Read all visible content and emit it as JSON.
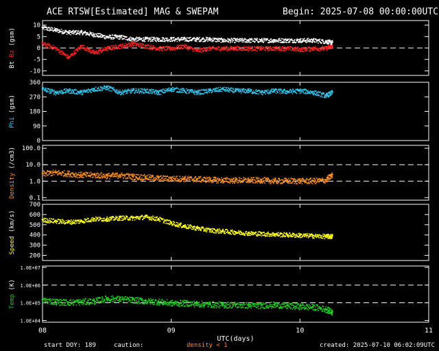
{
  "header": {
    "title": "ACE RTSW[Estimated] MAG & SWEPAM",
    "begin": "Begin: 2025-07-08 00:00:00UTC"
  },
  "footer": {
    "start_doy": "start DOY: 189",
    "caution_label": "caution:",
    "caution_text": "density < 1",
    "created": "created: 2025-07-10 06:02:09UTC"
  },
  "colors": {
    "bt": "#ffffff",
    "bz": "#ff2020",
    "phi": "#30c8f0",
    "density": "#ff9020",
    "speed": "#ffff20",
    "temp": "#20d020",
    "axis": "#ffffff"
  },
  "chart_data": [
    {
      "type": "scatter",
      "panel": "mag",
      "ylabel_parts": [
        "Bt",
        "Bz",
        "(gsm)"
      ],
      "ylim": [
        -12,
        12
      ],
      "yticks": [
        -10,
        -5,
        0,
        5,
        10
      ],
      "dashed_lines": [
        0
      ],
      "x": [
        8.0,
        8.1,
        8.2,
        8.3,
        8.4,
        8.5,
        8.6,
        8.7,
        8.8,
        8.9,
        9.0,
        9.1,
        9.2,
        9.3,
        9.4,
        9.5,
        9.6,
        9.7,
        9.8,
        9.9,
        10.0,
        10.1,
        10.2,
        10.25
      ],
      "series": [
        {
          "name": "Bt",
          "values": [
            9,
            8,
            7,
            7,
            6,
            5,
            5,
            4,
            4,
            4,
            4,
            4,
            4,
            4,
            3.5,
            3.5,
            3.5,
            3.5,
            3.5,
            3.5,
            3.5,
            3.5,
            3,
            2.5
          ]
        },
        {
          "name": "Bz",
          "values": [
            2,
            0,
            -4,
            1,
            -2,
            0,
            1,
            2,
            1,
            0,
            0,
            1,
            -1,
            0,
            0,
            0,
            0,
            0,
            0,
            0,
            -0.5,
            0,
            0,
            1
          ]
        }
      ]
    },
    {
      "type": "scatter",
      "panel": "phi",
      "ylabel_parts": [
        "Phi",
        "(gsm)"
      ],
      "ylim": [
        0,
        360
      ],
      "yticks": [
        0,
        90,
        180,
        270,
        360
      ],
      "dashed_lines": [],
      "x": [
        8.0,
        8.1,
        8.2,
        8.3,
        8.4,
        8.5,
        8.6,
        8.7,
        8.8,
        8.9,
        9.0,
        9.1,
        9.2,
        9.3,
        9.4,
        9.5,
        9.6,
        9.7,
        9.8,
        9.9,
        10.0,
        10.1,
        10.2,
        10.25
      ],
      "series": [
        {
          "name": "Phi",
          "values": [
            320,
            300,
            310,
            300,
            320,
            330,
            300,
            310,
            310,
            300,
            320,
            310,
            300,
            310,
            320,
            310,
            310,
            300,
            310,
            305,
            310,
            300,
            280,
            300
          ]
        }
      ]
    },
    {
      "type": "scatter",
      "panel": "density",
      "scale": "log",
      "ylabel_parts": [
        "Density",
        "(/cm3)"
      ],
      "ylim": [
        0.07,
        150
      ],
      "yticks": [
        0.1,
        1.0,
        10.0,
        100.0
      ],
      "ytick_labels": [
        "0.1",
        "1.0",
        "10.0",
        "100.0"
      ],
      "dashed_lines": [
        1,
        10
      ],
      "x": [
        8.0,
        8.1,
        8.2,
        8.3,
        8.4,
        8.5,
        8.6,
        8.7,
        8.8,
        8.9,
        9.0,
        9.1,
        9.2,
        9.3,
        9.4,
        9.5,
        9.6,
        9.7,
        9.8,
        9.9,
        10.0,
        10.1,
        10.2,
        10.25
      ],
      "series": [
        {
          "name": "Density",
          "values": [
            3,
            3.5,
            3,
            2.5,
            2.5,
            2.2,
            2.4,
            2,
            1.8,
            1.6,
            1.5,
            1.5,
            1.4,
            1.3,
            1.2,
            1.2,
            1.2,
            1.2,
            1.1,
            1.1,
            1.1,
            1.1,
            1.2,
            2.5
          ]
        }
      ]
    },
    {
      "type": "scatter",
      "panel": "speed",
      "ylabel_parts": [
        "Speed",
        "(km/s)"
      ],
      "ylim": [
        150,
        700
      ],
      "yticks": [
        200,
        300,
        400,
        500,
        600,
        700
      ],
      "dashed_lines": [],
      "x": [
        8.0,
        8.1,
        8.2,
        8.3,
        8.4,
        8.5,
        8.6,
        8.7,
        8.8,
        8.9,
        9.0,
        9.1,
        9.2,
        9.3,
        9.4,
        9.5,
        9.6,
        9.7,
        9.8,
        9.9,
        10.0,
        10.1,
        10.2,
        10.25
      ],
      "series": [
        {
          "name": "Speed",
          "values": [
            550,
            540,
            530,
            540,
            560,
            560,
            570,
            570,
            580,
            560,
            520,
            490,
            470,
            450,
            440,
            430,
            420,
            415,
            410,
            405,
            400,
            395,
            390,
            390
          ]
        }
      ]
    },
    {
      "type": "scatter",
      "panel": "temp",
      "scale": "log",
      "ylabel_parts": [
        "Temp",
        "(K)"
      ],
      "ylim": [
        8000,
        12000000
      ],
      "yticks": [
        10000,
        100000,
        1000000,
        10000000
      ],
      "ytick_labels": [
        "1.0E+04",
        "1.0E+05",
        "1.0E+06",
        "1.0E+07"
      ],
      "dashed_lines": [
        100000,
        1000000
      ],
      "x": [
        8.0,
        8.1,
        8.2,
        8.3,
        8.4,
        8.5,
        8.6,
        8.7,
        8.8,
        8.9,
        9.0,
        9.1,
        9.2,
        9.3,
        9.4,
        9.5,
        9.6,
        9.7,
        9.8,
        9.9,
        10.0,
        10.1,
        10.2,
        10.25
      ],
      "series": [
        {
          "name": "Temp",
          "values": [
            150000,
            120000,
            110000,
            120000,
            130000,
            180000,
            170000,
            150000,
            130000,
            120000,
            100000,
            100000,
            90000,
            85000,
            80000,
            80000,
            75000,
            75000,
            80000,
            70000,
            65000,
            60000,
            45000,
            30000
          ]
        }
      ]
    },
    {
      "type": "axis",
      "xlabel": "UTC(days)",
      "xlim": [
        8,
        11
      ],
      "xticks": [
        8,
        9,
        10,
        11
      ],
      "xtick_labels": [
        "08",
        "09",
        "10",
        "11"
      ]
    }
  ]
}
